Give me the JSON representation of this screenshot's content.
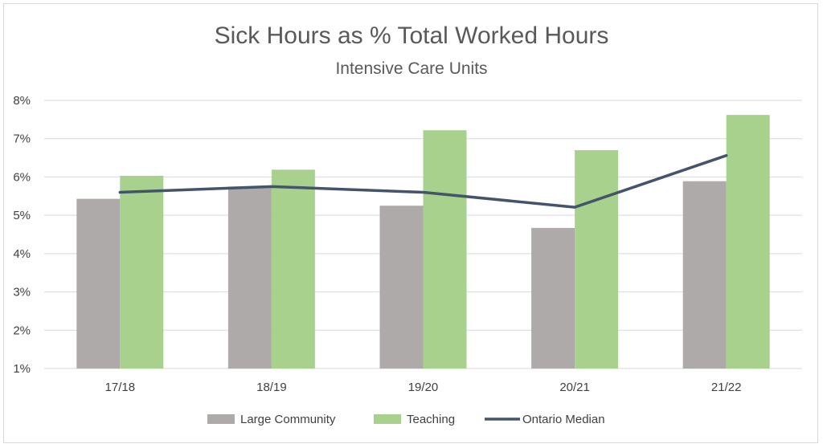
{
  "chart_data": {
    "type": "bar",
    "title": "Sick Hours as % Total Worked Hours",
    "subtitle": "Intensive Care Units",
    "categories": [
      "17/18",
      "18/19",
      "19/20",
      "20/21",
      "21/22"
    ],
    "series": [
      {
        "name": "Large Community",
        "kind": "bar",
        "color": "#aeaaaa",
        "values": [
          5.43,
          5.75,
          5.25,
          4.67,
          5.89
        ]
      },
      {
        "name": "Teaching",
        "kind": "bar",
        "color": "#a9d18e",
        "values": [
          6.03,
          6.19,
          7.22,
          6.7,
          7.62
        ]
      },
      {
        "name": "Ontario Median",
        "kind": "line",
        "color": "#44546a",
        "values": [
          5.6,
          5.75,
          5.6,
          5.21,
          6.56
        ]
      }
    ],
    "y_ticks": [
      "1%",
      "2%",
      "3%",
      "4%",
      "5%",
      "6%",
      "7%",
      "8%"
    ],
    "ylim": [
      1,
      8
    ],
    "grid": true,
    "legend_position": "bottom"
  }
}
